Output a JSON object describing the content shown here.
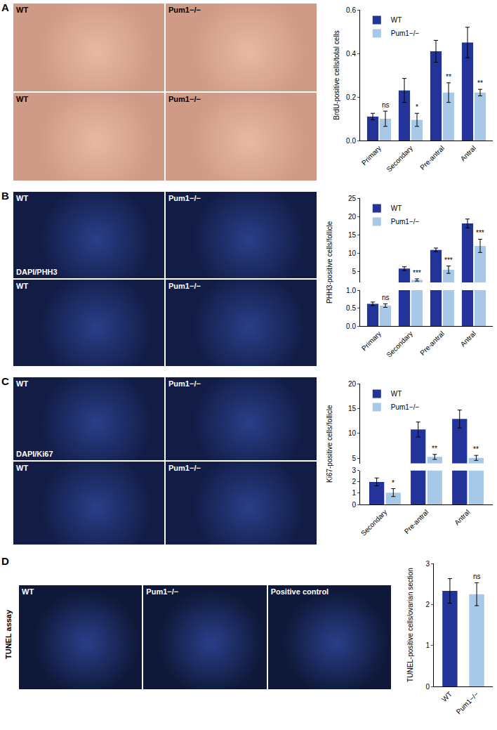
{
  "chart_data": [
    {
      "type": "bar",
      "panel": "A",
      "y_title": "BrdU-positive cells/total cells",
      "categories": [
        "Primary",
        "Secondary",
        "Pre-antral",
        "Antral"
      ],
      "series": [
        {
          "name": "WT",
          "color": "#22349a",
          "values": [
            0.11,
            0.23,
            0.41,
            0.45
          ],
          "errors": [
            0.015,
            0.055,
            0.05,
            0.07
          ]
        },
        {
          "name": "Pum1−/−",
          "color": "#a8c8e8",
          "values": [
            0.1,
            0.095,
            0.22,
            0.22
          ],
          "errors": [
            0.035,
            0.03,
            0.045,
            0.015
          ]
        }
      ],
      "significance": [
        "ns",
        "*",
        "**",
        "**"
      ],
      "ylim": [
        0,
        0.6
      ],
      "yticks": [
        {
          "value": 0,
          "label": "0.0"
        },
        {
          "value": 0.2,
          "label": "0.2"
        },
        {
          "value": 0.4,
          "label": "0.4"
        },
        {
          "value": 0.6,
          "label": "0.6"
        }
      ],
      "legend": "top-left"
    },
    {
      "type": "bar",
      "panel": "B",
      "y_title": "PHH3-positive cells/follicle",
      "categories": [
        "Primary",
        "Secondary",
        "Pre-antral",
        "Antral"
      ],
      "series": [
        {
          "name": "WT",
          "color": "#22349a",
          "values": [
            0.62,
            5.8,
            10.9,
            18.1
          ],
          "errors": [
            0.05,
            0.5,
            0.5,
            1.2
          ]
        },
        {
          "name": "Pum1−/−",
          "color": "#a8c8e8",
          "values": [
            0.57,
            2.7,
            5.5,
            12
          ],
          "errors": [
            0.05,
            0.3,
            1,
            1.8
          ]
        }
      ],
      "significance": [
        "ns",
        "***",
        "***",
        "***"
      ],
      "ylim": [
        0,
        25
      ],
      "y_break": [
        1,
        2
      ],
      "yticks": [
        {
          "value": 0,
          "label": "0.0"
        },
        {
          "value": 0.5,
          "label": "0.5"
        },
        {
          "value": 1,
          "label": "1.0"
        },
        5,
        10,
        15,
        20,
        25
      ],
      "legend": "top-left"
    },
    {
      "type": "bar",
      "panel": "C",
      "y_title": "Ki67-positive cells/follicle",
      "categories": [
        "Secondary",
        "Pre-antral",
        "Antral"
      ],
      "series": [
        {
          "name": "WT",
          "color": "#22349a",
          "values": [
            2.0,
            10.8,
            12.9
          ],
          "errors": [
            0.35,
            1.5,
            1.8
          ]
        },
        {
          "name": "Pum1−/−",
          "color": "#a8c8e8",
          "values": [
            1.05,
            5.3,
            5.1
          ],
          "errors": [
            0.35,
            0.5,
            0.5
          ]
        }
      ],
      "significance": [
        "*",
        "**",
        "**"
      ],
      "ylim": [
        0,
        20
      ],
      "y_break": [
        3,
        4
      ],
      "yticks": [
        0,
        1,
        2,
        3,
        5,
        10,
        15,
        20
      ],
      "legend": "top-left"
    },
    {
      "type": "bar",
      "panel": "D",
      "y_title": "TUNEL-positive cells/ovarian section",
      "categories": [
        "WT",
        "Pum1−/−"
      ],
      "values": [
        2.33,
        2.25
      ],
      "errors": [
        0.3,
        0.28
      ],
      "colors": [
        "#22349a",
        "#a8c8e8"
      ],
      "significance": [
        null,
        "ns"
      ],
      "ylim": [
        0,
        3
      ],
      "yticks": [
        0,
        1,
        2,
        3
      ]
    }
  ],
  "image_panels": [
    {
      "letter": "A",
      "images": [
        {
          "labels": [
            "WT"
          ]
        },
        {
          "labels": [
            "Pum1−/−"
          ]
        },
        {
          "labels": [
            "WT"
          ]
        },
        {
          "labels": [
            "Pum1−/−"
          ]
        }
      ]
    },
    {
      "letter": "B",
      "images": [
        {
          "labels": [
            "WT",
            "DAPI/PHH3"
          ]
        },
        {
          "labels": [
            "Pum1−/−"
          ]
        },
        {
          "labels": [
            "WT"
          ]
        },
        {
          "labels": [
            "Pum1−/−"
          ]
        }
      ]
    },
    {
      "letter": "C",
      "images": [
        {
          "labels": [
            "WT",
            "DAPI/Ki67"
          ]
        },
        {
          "labels": [
            "Pum1−/−"
          ]
        },
        {
          "labels": [
            "WT"
          ]
        },
        {
          "labels": [
            "Pum1−/−"
          ]
        }
      ]
    },
    {
      "letter": "D",
      "side_label": "TUNEL assay",
      "images": [
        {
          "labels": [
            "WT"
          ]
        },
        {
          "labels": [
            "Pum1−/−"
          ]
        },
        {
          "labels": [
            "Positive control"
          ]
        }
      ]
    }
  ]
}
